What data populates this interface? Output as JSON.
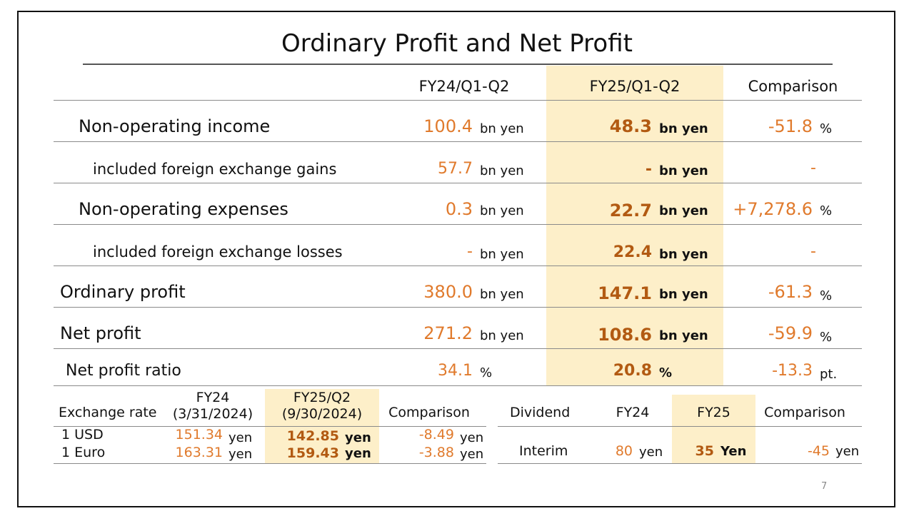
{
  "title": "Ordinary Profit and Net Profit",
  "page_number": "7",
  "main_table": {
    "headers": {
      "prior": "FY24/Q1-Q2",
      "current": "FY25/Q1-Q2",
      "comparison": "Comparison"
    },
    "rows": [
      {
        "label": "Non-operating income",
        "prior": "100.4",
        "prior_unit": "bn yen",
        "current": "48.3",
        "current_unit": "bn yen",
        "comparison": "-51.8",
        "comparison_unit": "%"
      },
      {
        "label": "included foreign exchange gains",
        "prior": "57.7",
        "prior_unit": "bn yen",
        "current": "-",
        "current_unit": "bn yen",
        "comparison": "-",
        "comparison_unit": ""
      },
      {
        "label": "Non-operating expenses",
        "prior": "0.3",
        "prior_unit": "bn yen",
        "current": "22.7",
        "current_unit": "bn yen",
        "comparison": "+7,278.6",
        "comparison_unit": "%"
      },
      {
        "label": "included foreign exchange losses",
        "prior": "-",
        "prior_unit": "bn yen",
        "current": "22.4",
        "current_unit": "bn yen",
        "comparison": "-",
        "comparison_unit": ""
      },
      {
        "label": "Ordinary profit",
        "prior": "380.0",
        "prior_unit": "bn yen",
        "current": "147.1",
        "current_unit": "bn yen",
        "comparison": "-61.3",
        "comparison_unit": "%"
      },
      {
        "label": "Net profit",
        "prior": "271.2",
        "prior_unit": "bn yen",
        "current": "108.6",
        "current_unit": "bn yen",
        "comparison": "-59.9",
        "comparison_unit": "%"
      },
      {
        "label": "Net profit ratio",
        "prior": "34.1",
        "prior_unit": "%",
        "current": "20.8",
        "current_unit": "%",
        "comparison": "-13.3",
        "comparison_unit": "pt."
      }
    ]
  },
  "exchange_table": {
    "label_header": "Exchange rate",
    "prior_header": "FY24",
    "prior_date": "(3/31/2024)",
    "current_header": "FY25/Q2",
    "current_date": "(9/30/2024)",
    "comparison_header": "Comparison",
    "rows": [
      {
        "label": "1 USD",
        "prior": "151.34",
        "prior_unit": "yen",
        "current": "142.85",
        "current_unit": "yen",
        "comparison": "-8.49",
        "comparison_unit": "yen"
      },
      {
        "label": "1 Euro",
        "prior": "163.31",
        "prior_unit": "yen",
        "current": "159.43",
        "current_unit": "yen",
        "comparison": "-3.88",
        "comparison_unit": "yen"
      }
    ]
  },
  "dividend_table": {
    "label_header": "Dividend",
    "prior_header": "FY24",
    "current_header": "FY25",
    "comparison_header": "Comparison",
    "rows": [
      {
        "label": "Interim",
        "prior": "80",
        "prior_unit": "yen",
        "current": "35",
        "current_unit": "Yen",
        "comparison": "-45",
        "comparison_unit": "yen"
      }
    ]
  },
  "colors": {
    "value_orange": "#e07a2c",
    "value_bold_brown": "#b25a12",
    "highlight_fill": "#fdefc9",
    "rule_gray": "#8a8a8a"
  }
}
